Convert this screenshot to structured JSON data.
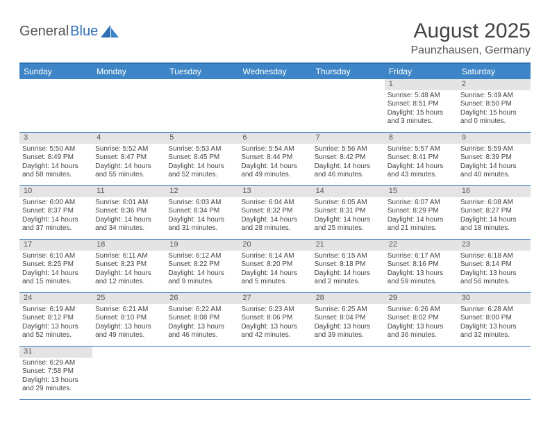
{
  "logo": {
    "dark": "General",
    "blue": "Blue"
  },
  "title": "August 2025",
  "location": "Paunzhausen, Germany",
  "colors": {
    "header_bg": "#3d85c6",
    "border": "#2f6fb3",
    "daynum_bg": "#e4e4e4",
    "text": "#444444"
  },
  "weekdays": [
    "Sunday",
    "Monday",
    "Tuesday",
    "Wednesday",
    "Thursday",
    "Friday",
    "Saturday"
  ],
  "weeks": [
    [
      {
        "n": "",
        "sr": "",
        "ss": "",
        "dl": ""
      },
      {
        "n": "",
        "sr": "",
        "ss": "",
        "dl": ""
      },
      {
        "n": "",
        "sr": "",
        "ss": "",
        "dl": ""
      },
      {
        "n": "",
        "sr": "",
        "ss": "",
        "dl": ""
      },
      {
        "n": "",
        "sr": "",
        "ss": "",
        "dl": ""
      },
      {
        "n": "1",
        "sr": "Sunrise: 5:48 AM",
        "ss": "Sunset: 8:51 PM",
        "dl": "Daylight: 15 hours and 3 minutes."
      },
      {
        "n": "2",
        "sr": "Sunrise: 5:49 AM",
        "ss": "Sunset: 8:50 PM",
        "dl": "Daylight: 15 hours and 0 minutes."
      }
    ],
    [
      {
        "n": "3",
        "sr": "Sunrise: 5:50 AM",
        "ss": "Sunset: 8:49 PM",
        "dl": "Daylight: 14 hours and 58 minutes."
      },
      {
        "n": "4",
        "sr": "Sunrise: 5:52 AM",
        "ss": "Sunset: 8:47 PM",
        "dl": "Daylight: 14 hours and 55 minutes."
      },
      {
        "n": "5",
        "sr": "Sunrise: 5:53 AM",
        "ss": "Sunset: 8:45 PM",
        "dl": "Daylight: 14 hours and 52 minutes."
      },
      {
        "n": "6",
        "sr": "Sunrise: 5:54 AM",
        "ss": "Sunset: 8:44 PM",
        "dl": "Daylight: 14 hours and 49 minutes."
      },
      {
        "n": "7",
        "sr": "Sunrise: 5:56 AM",
        "ss": "Sunset: 8:42 PM",
        "dl": "Daylight: 14 hours and 46 minutes."
      },
      {
        "n": "8",
        "sr": "Sunrise: 5:57 AM",
        "ss": "Sunset: 8:41 PM",
        "dl": "Daylight: 14 hours and 43 minutes."
      },
      {
        "n": "9",
        "sr": "Sunrise: 5:59 AM",
        "ss": "Sunset: 8:39 PM",
        "dl": "Daylight: 14 hours and 40 minutes."
      }
    ],
    [
      {
        "n": "10",
        "sr": "Sunrise: 6:00 AM",
        "ss": "Sunset: 8:37 PM",
        "dl": "Daylight: 14 hours and 37 minutes."
      },
      {
        "n": "11",
        "sr": "Sunrise: 6:01 AM",
        "ss": "Sunset: 8:36 PM",
        "dl": "Daylight: 14 hours and 34 minutes."
      },
      {
        "n": "12",
        "sr": "Sunrise: 6:03 AM",
        "ss": "Sunset: 8:34 PM",
        "dl": "Daylight: 14 hours and 31 minutes."
      },
      {
        "n": "13",
        "sr": "Sunrise: 6:04 AM",
        "ss": "Sunset: 8:32 PM",
        "dl": "Daylight: 14 hours and 28 minutes."
      },
      {
        "n": "14",
        "sr": "Sunrise: 6:05 AM",
        "ss": "Sunset: 8:31 PM",
        "dl": "Daylight: 14 hours and 25 minutes."
      },
      {
        "n": "15",
        "sr": "Sunrise: 6:07 AM",
        "ss": "Sunset: 8:29 PM",
        "dl": "Daylight: 14 hours and 21 minutes."
      },
      {
        "n": "16",
        "sr": "Sunrise: 6:08 AM",
        "ss": "Sunset: 8:27 PM",
        "dl": "Daylight: 14 hours and 18 minutes."
      }
    ],
    [
      {
        "n": "17",
        "sr": "Sunrise: 6:10 AM",
        "ss": "Sunset: 8:25 PM",
        "dl": "Daylight: 14 hours and 15 minutes."
      },
      {
        "n": "18",
        "sr": "Sunrise: 6:11 AM",
        "ss": "Sunset: 8:23 PM",
        "dl": "Daylight: 14 hours and 12 minutes."
      },
      {
        "n": "19",
        "sr": "Sunrise: 6:12 AM",
        "ss": "Sunset: 8:22 PM",
        "dl": "Daylight: 14 hours and 9 minutes."
      },
      {
        "n": "20",
        "sr": "Sunrise: 6:14 AM",
        "ss": "Sunset: 8:20 PM",
        "dl": "Daylight: 14 hours and 5 minutes."
      },
      {
        "n": "21",
        "sr": "Sunrise: 6:15 AM",
        "ss": "Sunset: 8:18 PM",
        "dl": "Daylight: 14 hours and 2 minutes."
      },
      {
        "n": "22",
        "sr": "Sunrise: 6:17 AM",
        "ss": "Sunset: 8:16 PM",
        "dl": "Daylight: 13 hours and 59 minutes."
      },
      {
        "n": "23",
        "sr": "Sunrise: 6:18 AM",
        "ss": "Sunset: 8:14 PM",
        "dl": "Daylight: 13 hours and 56 minutes."
      }
    ],
    [
      {
        "n": "24",
        "sr": "Sunrise: 6:19 AM",
        "ss": "Sunset: 8:12 PM",
        "dl": "Daylight: 13 hours and 52 minutes."
      },
      {
        "n": "25",
        "sr": "Sunrise: 6:21 AM",
        "ss": "Sunset: 8:10 PM",
        "dl": "Daylight: 13 hours and 49 minutes."
      },
      {
        "n": "26",
        "sr": "Sunrise: 6:22 AM",
        "ss": "Sunset: 8:08 PM",
        "dl": "Daylight: 13 hours and 46 minutes."
      },
      {
        "n": "27",
        "sr": "Sunrise: 6:23 AM",
        "ss": "Sunset: 8:06 PM",
        "dl": "Daylight: 13 hours and 42 minutes."
      },
      {
        "n": "28",
        "sr": "Sunrise: 6:25 AM",
        "ss": "Sunset: 8:04 PM",
        "dl": "Daylight: 13 hours and 39 minutes."
      },
      {
        "n": "29",
        "sr": "Sunrise: 6:26 AM",
        "ss": "Sunset: 8:02 PM",
        "dl": "Daylight: 13 hours and 36 minutes."
      },
      {
        "n": "30",
        "sr": "Sunrise: 6:28 AM",
        "ss": "Sunset: 8:00 PM",
        "dl": "Daylight: 13 hours and 32 minutes."
      }
    ],
    [
      {
        "n": "31",
        "sr": "Sunrise: 6:29 AM",
        "ss": "Sunset: 7:58 PM",
        "dl": "Daylight: 13 hours and 29 minutes."
      },
      {
        "n": "",
        "sr": "",
        "ss": "",
        "dl": ""
      },
      {
        "n": "",
        "sr": "",
        "ss": "",
        "dl": ""
      },
      {
        "n": "",
        "sr": "",
        "ss": "",
        "dl": ""
      },
      {
        "n": "",
        "sr": "",
        "ss": "",
        "dl": ""
      },
      {
        "n": "",
        "sr": "",
        "ss": "",
        "dl": ""
      },
      {
        "n": "",
        "sr": "",
        "ss": "",
        "dl": ""
      }
    ]
  ]
}
